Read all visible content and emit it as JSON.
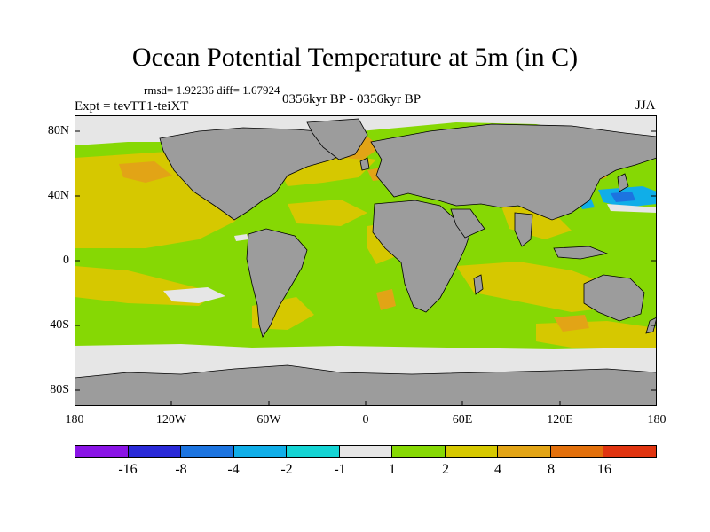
{
  "figure": {
    "title": "Ocean Potential Temperature at 5m (in C)",
    "stats": "rmsd= 1.92236 diff= 1.67924",
    "experiment": "Expt = tevTT1-teiXT",
    "period": "0356kyr BP - 0356kyr BP",
    "season": "JJA"
  },
  "map": {
    "land_color": "#9c9c9c",
    "ocean_base_color": "#86d804",
    "lat_labels": [
      "80N",
      "40N",
      "0",
      "40S",
      "80S"
    ],
    "lon_labels": [
      "180",
      "120W",
      "60W",
      "0",
      "60E",
      "120E",
      "180"
    ]
  },
  "colorbar": {
    "colors": [
      "#8a14e6",
      "#2a2ad8",
      "#1c74e0",
      "#10aee8",
      "#14d4d4",
      "#e6e6e6",
      "#86d804",
      "#d6c800",
      "#e2a416",
      "#e2700c",
      "#e03410"
    ],
    "labels": [
      "-16",
      "-8",
      "-4",
      "-2",
      "-1",
      "1",
      "2",
      "4",
      "8",
      "16"
    ]
  }
}
